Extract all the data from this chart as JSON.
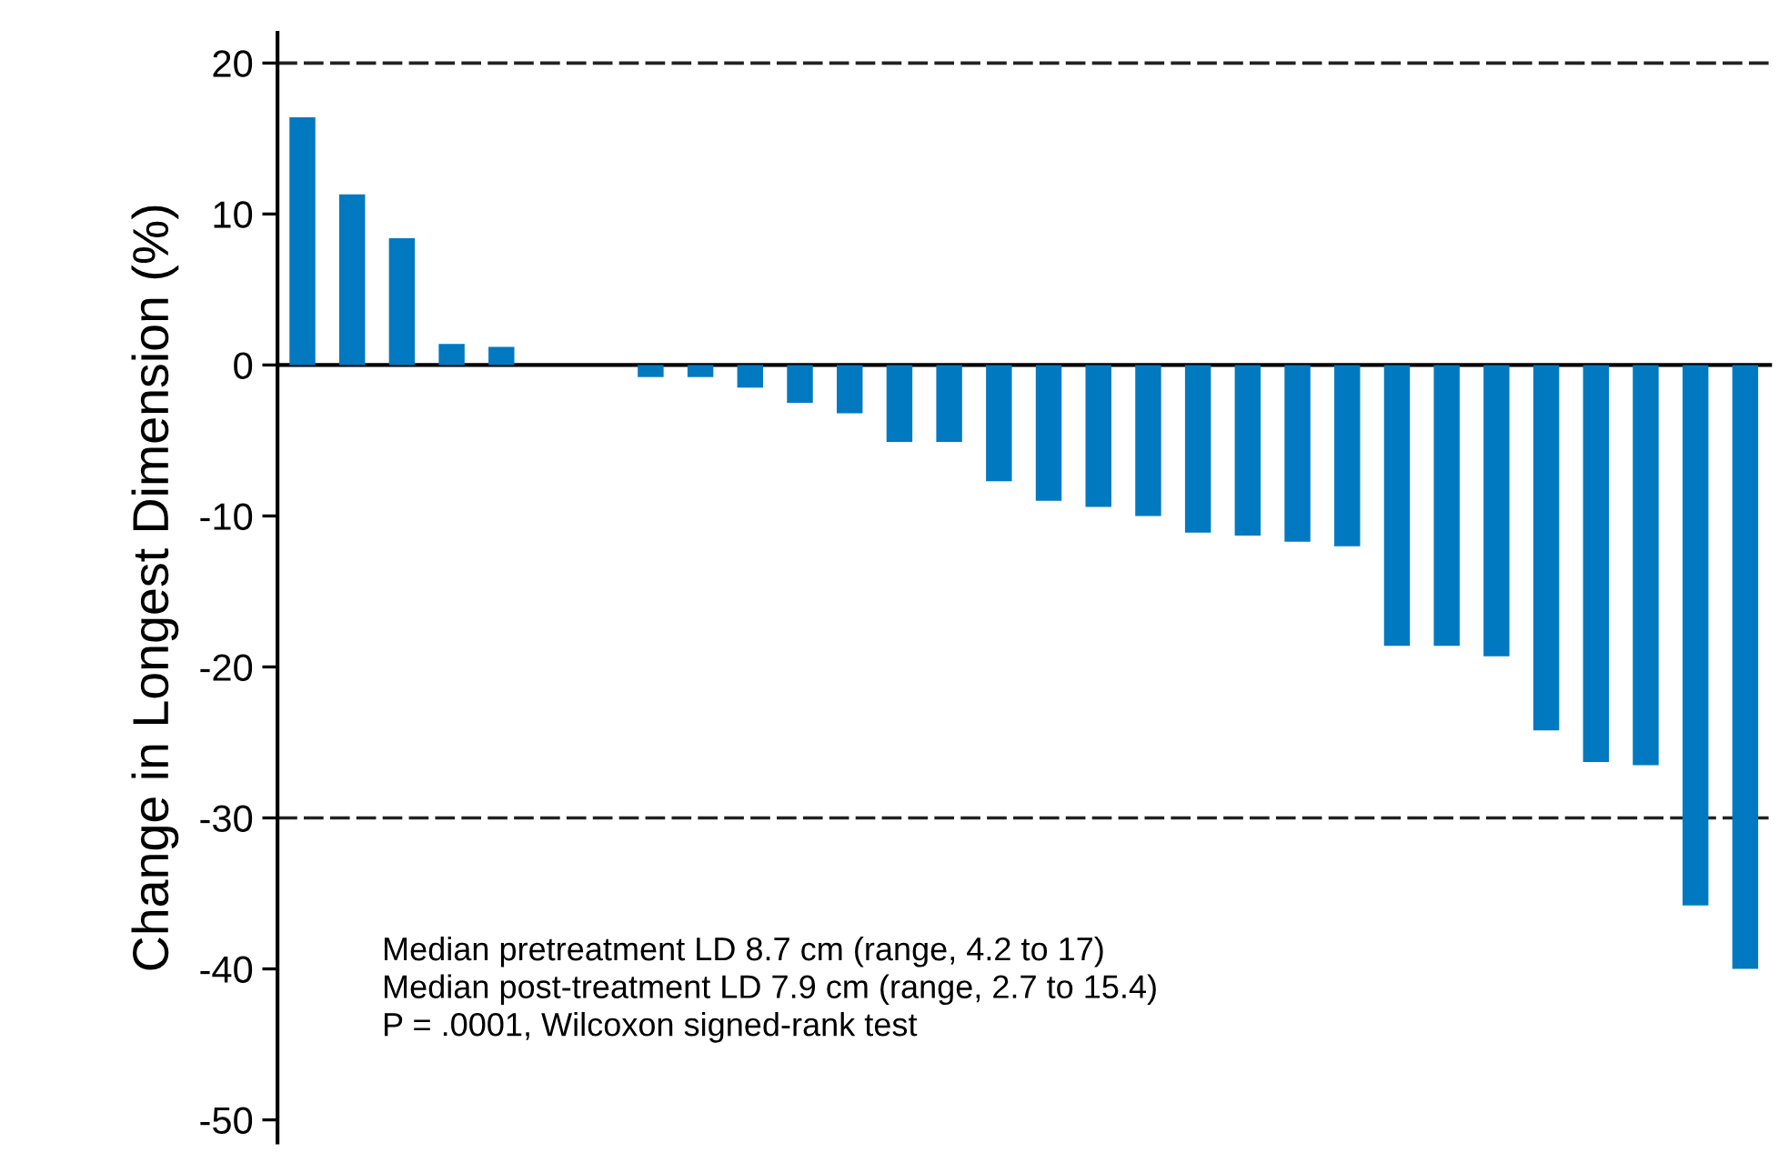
{
  "chart_data": {
    "type": "bar",
    "ylabel": "Change in Longest Dimension (%)",
    "categories": [
      null,
      null,
      null,
      null,
      null,
      null,
      null,
      null,
      null,
      null,
      null,
      null,
      null,
      null,
      null,
      null,
      null,
      null,
      null,
      null,
      null,
      null,
      null,
      null,
      null,
      null,
      null,
      null,
      null,
      null
    ],
    "values": [
      16.4,
      11.3,
      8.4,
      1.4,
      1.2,
      0,
      0,
      -0.8,
      -0.8,
      -1.5,
      -2.5,
      -3.2,
      -5.1,
      -5.1,
      -7.7,
      -9.0,
      -9.4,
      -10.0,
      -11.1,
      -11.3,
      -11.7,
      -12.0,
      -18.6,
      -18.6,
      -19.3,
      -24.2,
      -26.3,
      -26.5,
      -35.8,
      -40.0
    ],
    "color": "#0079c1",
    "ylim": [
      -51.5,
      22
    ],
    "yticks": [
      20,
      10,
      0,
      -10,
      -20,
      -30,
      -40,
      -50
    ],
    "ref_lines": [
      {
        "axis": "y",
        "value": 20,
        "color": "#222222",
        "line_style": "dashed"
      },
      {
        "axis": "y",
        "value": -30,
        "color": "#222222",
        "line_style": "dashed"
      }
    ],
    "tick_labels": "y",
    "grid": false,
    "annotations": [
      "Median pretreatment LD 8.7 cm (range, 4.2 to 17)\nMedian post-treatment LD 7.9 cm (range, 2.7 to 15.4)\nP = .0001, Wilcoxon signed-rank test"
    ]
  }
}
